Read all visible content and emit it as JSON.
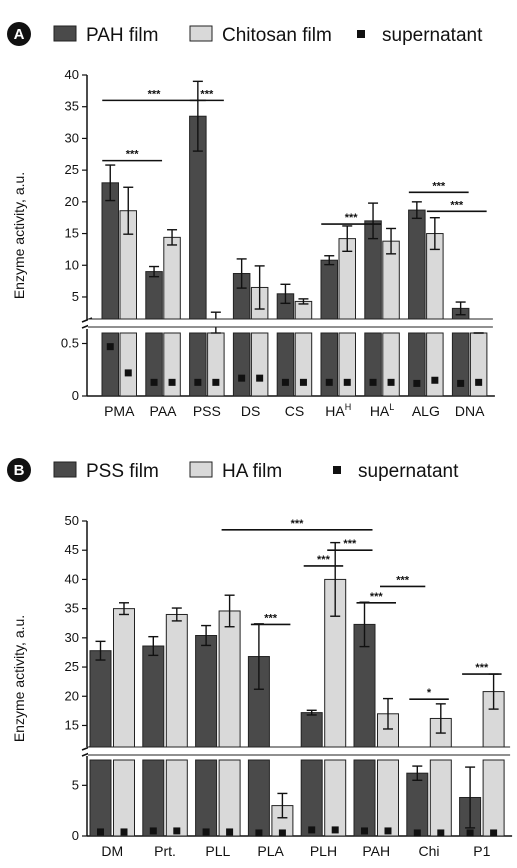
{
  "chart_data": [
    {
      "panel_label": "A",
      "type": "bar",
      "ylabel": "Enzyme activity, a.u.",
      "categories": [
        "PMA",
        "PAA",
        "PSS",
        "DS",
        "CS",
        "HA",
        "HA",
        "ALG",
        "DNA"
      ],
      "category_superscripts": [
        "",
        "",
        "",
        "",
        "",
        "H",
        "L",
        "",
        ""
      ],
      "series": [
        {
          "name": "PAH film",
          "color": "#4a4a4a",
          "values": [
            23.0,
            9.0,
            33.5,
            8.7,
            5.5,
            10.8,
            17.0,
            18.7,
            3.2
          ],
          "errors": [
            2.8,
            0.8,
            5.5,
            2.3,
            1.5,
            0.7,
            2.8,
            1.3,
            1.0
          ]
        },
        {
          "name": "Chitosan film",
          "color": "#d9d9d9",
          "values": [
            18.6,
            14.4,
            1.9,
            6.5,
            4.3,
            14.2,
            13.8,
            15.0,
            1.5
          ],
          "errors": [
            3.7,
            1.2,
            0.7,
            3.4,
            0.4,
            2.0,
            2.0,
            2.5,
            0.2
          ]
        },
        {
          "name": "supernatant",
          "color": "#111111",
          "marker": "square",
          "values": [
            0.22,
            0.13,
            0.13,
            0.17,
            0.13,
            0.13,
            0.13,
            0.15,
            0.13
          ]
        }
      ],
      "dual_values": [
        [
          false,
          false,
          false
        ],
        [
          false,
          false,
          false
        ],
        [
          false,
          false,
          true
        ],
        [
          false,
          false,
          false
        ],
        [
          false,
          false,
          false
        ],
        [
          false,
          false,
          false
        ],
        [
          false,
          false,
          false
        ],
        [
          false,
          false,
          true
        ],
        [
          false,
          false,
          true
        ]
      ],
      "dual_second": [
        [
          null,
          null,
          0.47
        ],
        [
          null,
          null,
          null
        ],
        [
          null,
          null,
          null
        ],
        [
          null,
          null,
          null
        ],
        [
          null,
          null,
          null
        ],
        [
          null,
          null,
          null
        ],
        [
          null,
          null,
          null
        ],
        [
          null,
          null,
          0.12
        ],
        [
          null,
          null,
          0.12
        ]
      ],
      "axis_break": {
        "lower": [
          0,
          0.6
        ],
        "upper": [
          2,
          40
        ]
      },
      "yticks_lower": [
        "0",
        "0.5"
      ],
      "yticks_upper": [
        "5",
        "10",
        "15",
        "20",
        "25",
        "30",
        "35",
        "40"
      ],
      "significance": [
        {
          "from": [
            0,
            0
          ],
          "to": [
            2,
            0
          ],
          "label": "***",
          "y": 36.0
        },
        {
          "from": [
            2,
            0
          ],
          "to": [
            2,
            1
          ],
          "label": "***",
          "y": 36.0
        },
        {
          "from": [
            0,
            0
          ],
          "to": [
            1,
            0
          ],
          "label": "***",
          "y": 26.5
        },
        {
          "from": [
            5,
            0
          ],
          "to": [
            6,
            0
          ],
          "label": "***",
          "y": 16.5
        },
        {
          "from": [
            7,
            0
          ],
          "to": [
            8,
            0
          ],
          "label": "***",
          "y": 21.5
        },
        {
          "from": [
            7,
            1
          ],
          "to": [
            8,
            1
          ],
          "label": "***",
          "y": 18.5
        }
      ],
      "legend_placement": "top"
    },
    {
      "panel_label": "B",
      "type": "bar",
      "ylabel": "Enzyme activity, a.u.",
      "categories": [
        "DM",
        "Prt.",
        "PLL",
        "PLA",
        "PLH",
        "PAH",
        "Chi",
        "P1"
      ],
      "series": [
        {
          "name": "PSS film",
          "color": "#4a4a4a",
          "values": [
            27.8,
            28.6,
            30.4,
            26.8,
            17.2,
            32.3,
            6.2,
            3.8
          ],
          "errors": [
            1.6,
            1.6,
            1.7,
            5.6,
            0.4,
            3.8,
            0.7,
            3.0
          ]
        },
        {
          "name": "HA film",
          "color": "#d9d9d9",
          "values": [
            35.0,
            34.0,
            34.6,
            3.0,
            40.0,
            17.0,
            16.2,
            20.8
          ],
          "errors": [
            1.0,
            1.1,
            2.7,
            1.2,
            6.3,
            2.6,
            2.5,
            3.0
          ]
        },
        {
          "name": "supernatant",
          "color": "#111111",
          "marker": "square",
          "values": [
            0.4,
            0.5,
            0.4,
            0.3,
            0.6,
            0.5,
            0.3,
            0.3
          ]
        }
      ],
      "axis_break": {
        "lower": [
          0,
          7.5
        ],
        "upper": [
          12,
          50
        ]
      },
      "yticks_lower": [
        "0",
        "5"
      ],
      "yticks_upper": [
        "15",
        "20",
        "25",
        "30",
        "35",
        "40",
        "45",
        "50"
      ],
      "significance": [
        {
          "from": [
            2,
            1
          ],
          "to": [
            5,
            0
          ],
          "label": "***",
          "y": 48.5
        },
        {
          "from": [
            4,
            1
          ],
          "to": [
            5,
            0
          ],
          "label": "***",
          "y": 45.0
        },
        {
          "from": [
            4,
            0
          ],
          "to": [
            4,
            1
          ],
          "label": "***",
          "y": 42.3
        },
        {
          "from": [
            5,
            1
          ],
          "to": [
            6,
            0
          ],
          "label": "***",
          "y": 38.8
        },
        {
          "from": [
            5,
            0
          ],
          "to": [
            5,
            1
          ],
          "label": "***",
          "y": 36.0
        },
        {
          "from": [
            3,
            0
          ],
          "to": [
            3,
            1
          ],
          "label": "***",
          "y": 32.3
        },
        {
          "from": [
            6,
            0
          ],
          "to": [
            6,
            1
          ],
          "label": "*",
          "y": 19.5
        },
        {
          "from": [
            7,
            0
          ],
          "to": [
            7,
            1
          ],
          "label": "***",
          "y": 23.8
        }
      ],
      "legend_placement": "top"
    }
  ]
}
